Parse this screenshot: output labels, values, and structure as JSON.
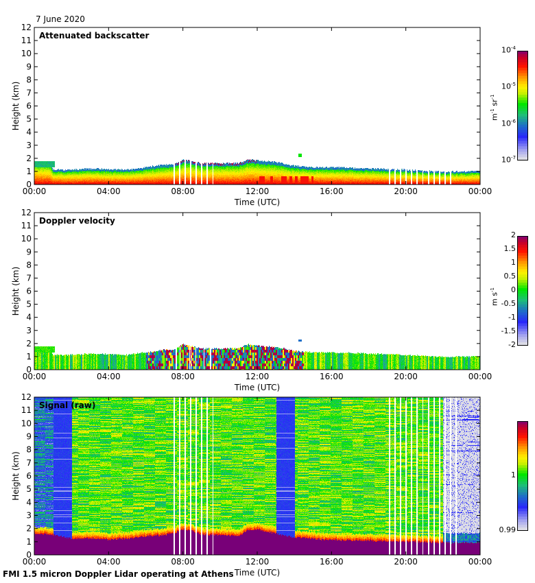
{
  "header": {
    "date": "7 June 2020"
  },
  "footer": {
    "caption": "FMI 1.5 micron Doppler Lidar operating at Athens"
  },
  "chart_data": [
    {
      "type": "heatmap",
      "title": "Attenuated backscatter",
      "xlabel": "Time (UTC)",
      "ylabel": "Height (km)",
      "xlim_hours": [
        0,
        24
      ],
      "ylim_km": [
        0,
        12
      ],
      "xticks": [
        "00:00",
        "04:00",
        "08:00",
        "12:00",
        "16:00",
        "20:00",
        "00:00"
      ],
      "yticks": [
        "0",
        "1",
        "2",
        "3",
        "4",
        "5",
        "6",
        "7",
        "8",
        "9",
        "10",
        "11",
        "12"
      ],
      "colorbar": {
        "scale": "log",
        "range": [
          1e-07,
          0.0001
        ],
        "ticks": [
          {
            "base": "10",
            "exp": "-7"
          },
          {
            "base": "10",
            "exp": "-6"
          },
          {
            "base": "10",
            "exp": "-5"
          },
          {
            "base": "10",
            "exp": "-4"
          }
        ],
        "unit": "m-1 sr-1"
      },
      "layer_top_km": {
        "hours": [
          0,
          0.8,
          1.0,
          2.0,
          3.0,
          4.0,
          5.0,
          6.0,
          7.0,
          7.5,
          8.0,
          9.0,
          10.0,
          11.0,
          11.5,
          12.0,
          13.0,
          14.0,
          15.0,
          16.0,
          18.0,
          20.0,
          22.0,
          24.0
        ],
        "km": [
          1.7,
          1.7,
          1.1,
          1.1,
          1.2,
          1.15,
          1.1,
          1.3,
          1.5,
          1.5,
          1.9,
          1.6,
          1.6,
          1.6,
          1.9,
          1.8,
          1.7,
          1.4,
          1.3,
          1.3,
          1.2,
          1.1,
          0.95,
          1.0
        ]
      },
      "isolated_features": [
        {
          "hour": 14.3,
          "km": 2.2
        }
      ],
      "data_gaps_hours": [
        7.5,
        7.8,
        8.1,
        8.4,
        8.7,
        9.0,
        9.3,
        9.6,
        19.1,
        19.4,
        19.7,
        20.0,
        20.3,
        20.6,
        20.9,
        21.2,
        21.5,
        21.8,
        22.1,
        22.4
      ]
    },
    {
      "type": "heatmap",
      "title": "Doppler velocity",
      "xlabel": "Time (UTC)",
      "ylabel": "Height (km)",
      "xlim_hours": [
        0,
        24
      ],
      "ylim_km": [
        0,
        12
      ],
      "xticks": [
        "00:00",
        "04:00",
        "08:00",
        "12:00",
        "16:00",
        "20:00",
        "00:00"
      ],
      "yticks": [
        "0",
        "1",
        "2",
        "3",
        "4",
        "5",
        "6",
        "7",
        "8",
        "9",
        "10",
        "11",
        "12"
      ],
      "colorbar": {
        "scale": "linear",
        "range": [
          -2,
          2
        ],
        "ticks": [
          "-2",
          "-1.5",
          "-1",
          "-0.5",
          "0",
          "0.5",
          "1",
          "1.5",
          "2"
        ],
        "unit": "m s-1"
      },
      "layer_top_km": {
        "hours": [
          0,
          0.8,
          1.0,
          2.0,
          3.0,
          4.0,
          5.0,
          6.0,
          7.0,
          7.5,
          8.0,
          9.0,
          10.0,
          11.0,
          11.5,
          12.0,
          13.0,
          14.0,
          15.0,
          16.0,
          18.0,
          20.0,
          22.0,
          24.0
        ],
        "km": [
          1.7,
          1.7,
          1.1,
          1.1,
          1.2,
          1.15,
          1.1,
          1.3,
          1.5,
          1.5,
          1.9,
          1.6,
          1.6,
          1.6,
          1.9,
          1.8,
          1.7,
          1.4,
          1.3,
          1.3,
          1.2,
          1.1,
          0.95,
          1.0
        ]
      },
      "convective_period_hours": [
        6.0,
        14.5
      ]
    },
    {
      "type": "heatmap",
      "title": "Signal (raw)",
      "xlabel": "Time (UTC)",
      "ylabel": "Height (km)",
      "xlim_hours": [
        0,
        24
      ],
      "ylim_km": [
        0,
        12
      ],
      "xticks": [
        "00:00",
        "04:00",
        "08:00",
        "12:00",
        "16:00",
        "20:00",
        "00:00"
      ],
      "yticks": [
        "0",
        "1",
        "2",
        "3",
        "4",
        "5",
        "6",
        "7",
        "8",
        "9",
        "10",
        "11",
        "12"
      ],
      "colorbar": {
        "scale": "linear",
        "range": [
          0.99,
          1.01
        ],
        "ticks": [
          "0.99",
          "1"
        ],
        "unit": ""
      },
      "saturated_top_km": {
        "hours": [
          0,
          1.0,
          2.0,
          3.0,
          4.0,
          5.0,
          6.0,
          7.0,
          7.5,
          8.0,
          8.5,
          9.0,
          10.0,
          11.0,
          11.5,
          12.0,
          13.0,
          14.0,
          16.0,
          20.0,
          22.0,
          24.0
        ],
        "km": [
          1.6,
          1.5,
          1.2,
          1.25,
          1.15,
          1.2,
          1.4,
          1.5,
          1.6,
          1.9,
          1.8,
          1.5,
          1.5,
          1.4,
          1.9,
          1.9,
          1.6,
          1.3,
          1.1,
          1.0,
          0.9,
          0.9
        ]
      },
      "low_signal_periods_hours": [
        [
          1.0,
          2.0
        ],
        [
          13.0,
          14.0
        ]
      ],
      "no_signal_period_hours": [
        22.0,
        24.0
      ],
      "data_gaps_hours": [
        7.5,
        7.8,
        8.1,
        8.4,
        8.7,
        9.0,
        9.3,
        9.6,
        19.1,
        19.4,
        19.7,
        20.0,
        20.3,
        20.6,
        20.9,
        21.2,
        21.5,
        21.8,
        22.1,
        22.4,
        22.7
      ]
    }
  ]
}
